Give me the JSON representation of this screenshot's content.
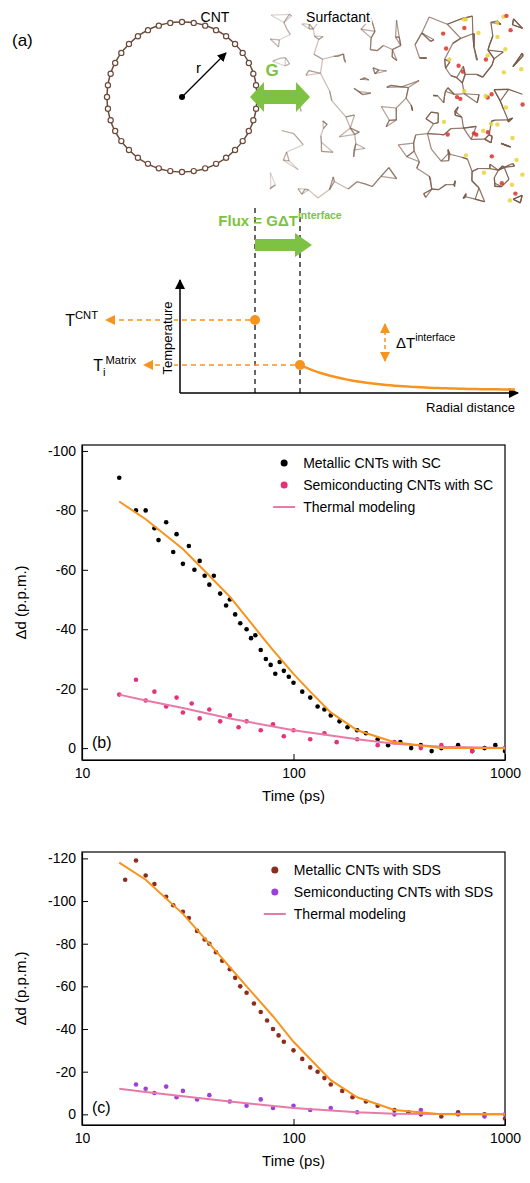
{
  "diagram": {
    "panel_label": "(a)",
    "cnt_label": "CNT",
    "surfactant_label": "Surfactant",
    "radius_label": "r",
    "conductance_label": "G",
    "flux_label": {
      "base": "Flux = GΔT",
      "sup": "interface"
    },
    "t_cnt": {
      "base": "T",
      "sup": "CNT"
    },
    "t_matrix": {
      "base": "T",
      "sub": "i",
      "sup": "Matrix"
    },
    "delta_t": {
      "base": "ΔT",
      "sup": "interface"
    },
    "y_axis_label": "Temperature",
    "x_axis_label": "Radial distance"
  },
  "chart_data": [
    {
      "type": "scatter",
      "title": "(b)",
      "x_label": "Time (ps)",
      "y_label": "Δd (p.p.m.)",
      "log": "x",
      "xlim": [
        10,
        1000
      ],
      "xticks": [
        10,
        100,
        1000
      ],
      "ylim": [
        4,
        -102
      ],
      "yticks": [
        -100,
        -80,
        -60,
        -40,
        -20,
        0
      ],
      "legend": "upper right",
      "series": [
        {
          "name": "Metallic CNTs with SC",
          "color": "#000000",
          "marker": "circle",
          "x": [
            15,
            18,
            20,
            22,
            23,
            25,
            27,
            28,
            30,
            32,
            34,
            36,
            38,
            40,
            42,
            45,
            48,
            50,
            53,
            56,
            60,
            63,
            66,
            70,
            74,
            78,
            82,
            86,
            90,
            95,
            100,
            110,
            120,
            130,
            140,
            150,
            165,
            180,
            200,
            220,
            250,
            280,
            320,
            360,
            400,
            450,
            500,
            600,
            700,
            800,
            900,
            1000
          ],
          "values": [
            -91,
            -80,
            -80,
            -74,
            -70,
            -76,
            -66,
            -72,
            -62,
            -68,
            -60,
            -63,
            -58,
            -55,
            -58,
            -52,
            -48,
            -50,
            -45,
            -42,
            -40,
            -37,
            -38,
            -33,
            -30,
            -28,
            -25,
            -29,
            -26,
            -24,
            -22,
            -19,
            -17,
            -14,
            -13,
            -11,
            -9,
            -7,
            -6,
            -5,
            -3,
            -1,
            -2,
            0,
            -1,
            1,
            0,
            -1,
            1,
            0,
            -1,
            1
          ]
        },
        {
          "name": "Semiconducting CNTs with SC",
          "color": "#e6307a",
          "marker": "circle",
          "x": [
            15,
            18,
            20,
            22,
            25,
            28,
            30,
            33,
            36,
            40,
            45,
            50,
            55,
            60,
            70,
            80,
            90,
            100,
            120,
            140,
            160,
            200,
            250,
            300,
            400,
            500,
            700,
            1000
          ],
          "values": [
            -18,
            -23,
            -16,
            -19,
            -14,
            -17,
            -12,
            -15,
            -10,
            -13,
            -9,
            -11,
            -7,
            -9,
            -6,
            -8,
            -4,
            -6,
            -3,
            -5,
            -2,
            -3,
            -1,
            -2,
            0,
            -1,
            1,
            0
          ]
        },
        {
          "name": "Thermal modeling",
          "type": "line",
          "line_style": "solid",
          "color": "#e87aa8",
          "x": [
            15,
            20,
            30,
            50,
            100,
            200,
            300,
            500,
            1000
          ],
          "values": [
            -18,
            -16,
            -13.5,
            -10,
            -6,
            -3,
            -1.5,
            -0.5,
            0
          ]
        },
        {
          "name": "Thermal modeling",
          "type": "line",
          "line_style": "solid",
          "color": "#f7941d",
          "x": [
            15,
            20,
            30,
            40,
            50,
            60,
            70,
            80,
            100,
            120,
            150,
            200,
            300,
            500,
            1000
          ],
          "values": [
            -83,
            -77,
            -67,
            -58,
            -51,
            -44,
            -38,
            -33,
            -25,
            -19,
            -12,
            -6,
            -2,
            0,
            0
          ]
        }
      ]
    },
    {
      "type": "scatter",
      "title": "(c)",
      "x_label": "Time (ps)",
      "y_label": "Δd (p.p.m.)",
      "log": "x",
      "xlim": [
        10,
        1000
      ],
      "xticks": [
        10,
        100,
        1000
      ],
      "ylim": [
        5,
        -123
      ],
      "yticks": [
        -120,
        -100,
        -80,
        -60,
        -40,
        -20,
        0
      ],
      "legend": "upper right",
      "series": [
        {
          "name": "Metallic CNTs with SDS",
          "color": "#8b2d1c",
          "marker": "circle",
          "x": [
            16,
            18,
            20,
            22,
            25,
            27,
            30,
            32,
            35,
            38,
            40,
            43,
            46,
            50,
            53,
            56,
            60,
            65,
            70,
            75,
            80,
            85,
            90,
            100,
            110,
            120,
            130,
            140,
            150,
            170,
            190,
            220,
            250,
            300,
            350,
            400,
            500,
            600,
            800,
            1000
          ],
          "values": [
            -110,
            -119,
            -112,
            -108,
            -102,
            -98,
            -95,
            -92,
            -86,
            -82,
            -80,
            -76,
            -72,
            -68,
            -64,
            -60,
            -57,
            -52,
            -48,
            -44,
            -40,
            -37,
            -34,
            -30,
            -26,
            -22,
            -20,
            -17,
            -14,
            -11,
            -8,
            -6,
            -4,
            -2,
            -1,
            0,
            1,
            -1,
            0,
            2
          ]
        },
        {
          "name": "Semiconducting CNTs with SDS",
          "color": "#9b40d8",
          "marker": "circle",
          "x": [
            18,
            20,
            22,
            25,
            28,
            30,
            35,
            40,
            50,
            60,
            70,
            80,
            100,
            120,
            150,
            200,
            300,
            400,
            600,
            800,
            1000
          ],
          "values": [
            -14,
            -12,
            -10,
            -13,
            -8,
            -11,
            -7,
            -9,
            -6,
            -4,
            -7,
            -3,
            -4,
            -2,
            -3,
            -1,
            0,
            -2,
            0,
            1,
            0
          ]
        },
        {
          "name": "Thermal modeling",
          "type": "line",
          "line_style": "solid",
          "color": "#e87aa8",
          "x": [
            15,
            20,
            30,
            50,
            100,
            200,
            300,
            1000
          ],
          "values": [
            -12,
            -10.5,
            -8.5,
            -6,
            -3,
            -1,
            -0.3,
            0
          ]
        },
        {
          "name": "Thermal modeling",
          "type": "line",
          "line_style": "solid",
          "color": "#f7941d",
          "x": [
            15,
            20,
            30,
            40,
            50,
            60,
            80,
            100,
            150,
            200,
            300,
            500,
            1000
          ],
          "values": [
            -118,
            -110,
            -94,
            -80,
            -69,
            -60,
            -46,
            -34,
            -16,
            -8,
            -2,
            0,
            0
          ]
        }
      ]
    }
  ]
}
